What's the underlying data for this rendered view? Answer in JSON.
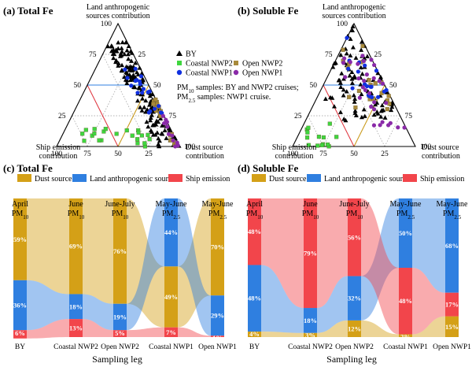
{
  "panels": {
    "a": {
      "title": "(a) Total Fe"
    },
    "b": {
      "title": "(b) Soluble Fe"
    },
    "c": {
      "title": "(c) Total Fe"
    },
    "d": {
      "title": "(d) Soluble Fe"
    }
  },
  "ternary": {
    "top_label": [
      "Land anthropogenic",
      "sources contribution"
    ],
    "left_label": [
      "Ship emission",
      "contribution"
    ],
    "right_label": [
      "Dust source",
      "contribution"
    ],
    "ticks": [
      "25",
      "50",
      "75",
      "100"
    ],
    "legend": [
      {
        "name": "BY",
        "marker": "triangle",
        "color": "#000000"
      },
      {
        "name": "Coastal NWP2",
        "marker": "square",
        "color": "#3fd63f"
      },
      {
        "name": "Open NWP2",
        "marker": "square",
        "color": "#a88a3c"
      },
      {
        "name": "Coastal NWP1",
        "marker": "circle",
        "color": "#1030e0"
      },
      {
        "name": "Open NWP1",
        "marker": "circle",
        "color": "#8a2aa8"
      }
    ],
    "note_line1": [
      "PM",
      "10",
      " samples: BY and NWP2 cruises;"
    ],
    "note_line2": [
      "PM",
      "2.5",
      " samples: NWP1 cruise."
    ]
  },
  "colors": {
    "dust": "#d4a017",
    "land": "#2f7fe0",
    "ship": "#f2454b"
  },
  "sankey": {
    "legend": [
      "Dust source",
      "Land anthropogenic sources",
      "Ship emission"
    ],
    "xlabel": "Sampling leg",
    "categories": [
      "BY",
      "Coastal NWP2",
      "Open NWP2",
      "Coastal NWP1",
      "Open NWP1"
    ],
    "headers": [
      {
        "top": "April",
        "pm": "PM",
        "sub": "10"
      },
      {
        "top": "June",
        "pm": "PM",
        "sub": "10"
      },
      {
        "top": "June-July",
        "pm": "PM",
        "sub": "10"
      },
      {
        "top": "May-June",
        "pm": "PM",
        "sub": "2.5"
      },
      {
        "top": "May-June",
        "pm": "PM",
        "sub": "2.5"
      }
    ]
  },
  "chart_data": [
    {
      "type": "ternary-scatter",
      "title": "(a) Total Fe",
      "axes": [
        "Land anthropogenic sources contribution",
        "Ship emission contribution",
        "Dust source contribution"
      ],
      "series": [
        "BY",
        "Coastal NWP2",
        "Open NWP2",
        "Coastal NWP1",
        "Open NWP1"
      ]
    },
    {
      "type": "ternary-scatter",
      "title": "(b) Soluble Fe",
      "axes": [
        "Land anthropogenic sources contribution",
        "Ship emission contribution",
        "Dust source contribution"
      ],
      "series": [
        "BY",
        "Coastal NWP2",
        "Open NWP2",
        "Coastal NWP1",
        "Open NWP1"
      ]
    },
    {
      "type": "sankey",
      "title": "(c) Total Fe",
      "xlabel": "Sampling leg",
      "categories": [
        "BY",
        "Coastal NWP2",
        "Open NWP2",
        "Coastal NWP1",
        "Open NWP1"
      ],
      "series": [
        {
          "name": "Dust source",
          "values": [
            59,
            69,
            76,
            44,
            70
          ]
        },
        {
          "name": "Land anthropogenic sources",
          "values": [
            36,
            18,
            19,
            49,
            29
          ]
        },
        {
          "name": "Ship emission",
          "values": [
            6,
            13,
            5,
            7,
            1
          ]
        }
      ],
      "labels": [
        [
          "59%",
          "36%",
          "6%"
        ],
        [
          "69%",
          "18%",
          "13%"
        ],
        [
          "76%",
          "19%",
          "5%"
        ],
        [
          "44%",
          "49%",
          "7%"
        ],
        [
          "70%",
          "29%",
          "1%"
        ]
      ],
      "stack_order": [
        [
          "dust",
          "land",
          "ship"
        ],
        [
          "dust",
          "land",
          "ship"
        ],
        [
          "dust",
          "land",
          "ship"
        ],
        [
          "land",
          "dust",
          "ship"
        ],
        [
          "dust",
          "land",
          "ship"
        ]
      ]
    },
    {
      "type": "sankey",
      "title": "(d) Soluble Fe",
      "xlabel": "Sampling leg",
      "categories": [
        "BY",
        "Coastal NWP2",
        "Open NWP2",
        "Coastal NWP1",
        "Open NWP1"
      ],
      "series": [
        {
          "name": "Dust source",
          "values": [
            4,
            3,
            12,
            2,
            15
          ]
        },
        {
          "name": "Land anthropogenic sources",
          "values": [
            48,
            18,
            32,
            50,
            68
          ]
        },
        {
          "name": "Ship emission",
          "values": [
            48,
            79,
            56,
            48,
            17
          ]
        }
      ],
      "labels": [
        [
          "48%",
          "48%",
          "4%"
        ],
        [
          "79%",
          "18%",
          "3%"
        ],
        [
          "56%",
          "32%",
          "12%"
        ],
        [
          "50%",
          "48%",
          "2%"
        ],
        [
          "68%",
          "17%",
          "15%"
        ]
      ],
      "stack_order": [
        [
          "ship",
          "land",
          "dust"
        ],
        [
          "ship",
          "land",
          "dust"
        ],
        [
          "ship",
          "land",
          "dust"
        ],
        [
          "land",
          "ship",
          "dust"
        ],
        [
          "land",
          "ship",
          "dust"
        ]
      ]
    }
  ]
}
